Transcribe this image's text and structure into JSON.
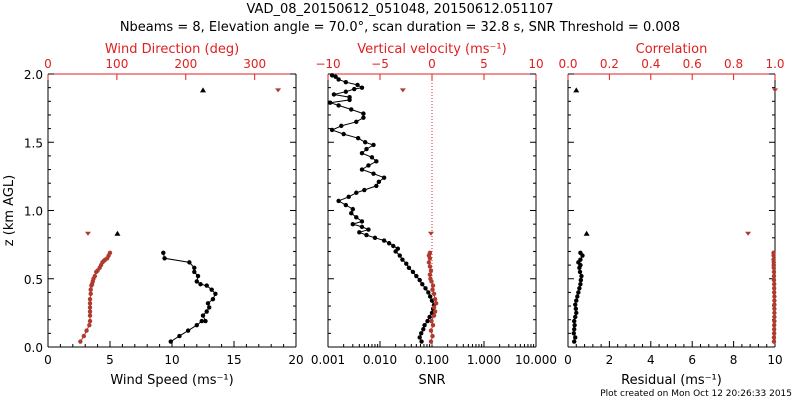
{
  "header": {
    "title": "VAD_08_20150612_051048, 20150612.051107",
    "subtitle": "Nbeams = 8, Elevation angle = 70.0°, scan duration = 32.8 s, SNR Threshold = 0.008"
  },
  "footer": {
    "credit": "Plot created on Mon Oct 12 20:26:33 2015"
  },
  "colors": {
    "black_series": "#000000",
    "red_series": "#b03a2e",
    "red_axis": "#e02020"
  },
  "chart_data": [
    {
      "type": "scatter",
      "name": "wind",
      "ylabel": "z (km AGL)",
      "ylim": [
        0,
        2
      ],
      "yticks": [
        "0.0",
        "0.5",
        "1.0",
        "1.5",
        "2.0"
      ],
      "bottom_axis": {
        "label": "Wind Speed (ms⁻¹)",
        "range": [
          0,
          20
        ],
        "ticks": [
          "0",
          "5",
          "10",
          "15",
          "20"
        ]
      },
      "top_axis": {
        "label": "Wind Direction (deg)",
        "range": [
          0,
          360
        ],
        "ticks": [
          "0",
          "100",
          "200",
          "300"
        ]
      },
      "series": [
        {
          "name": "Wind Speed",
          "axis": "bottom",
          "color": "black",
          "connected": true,
          "x": [
            9.9,
            10.6,
            11.3,
            12.0,
            12.4,
            12.7,
            12.5,
            12.8,
            13.0,
            12.9,
            13.3,
            13.5,
            13.2,
            12.8,
            12.3,
            12.0,
            12.1,
            11.8,
            11.8,
            11.4,
            9.4,
            9.3
          ],
          "y": [
            0.04,
            0.08,
            0.12,
            0.16,
            0.19,
            0.19,
            0.23,
            0.26,
            0.29,
            0.32,
            0.35,
            0.39,
            0.42,
            0.45,
            0.46,
            0.48,
            0.52,
            0.55,
            0.58,
            0.62,
            0.65,
            0.69
          ]
        },
        {
          "name": "Wind Speed (isolated)",
          "axis": "bottom",
          "color": "black",
          "connected": false,
          "x": [
            5.6,
            12.5
          ],
          "y": [
            0.83,
            1.88
          ]
        },
        {
          "name": "Wind Direction",
          "axis": "top",
          "color": "red",
          "connected": true,
          "x": [
            47,
            52,
            56,
            60,
            61,
            61,
            61,
            61,
            61,
            61,
            62,
            62,
            63,
            64,
            65,
            66,
            68,
            70,
            72,
            75,
            77,
            79,
            81,
            83,
            86,
            88,
            90
          ],
          "y": [
            0.04,
            0.08,
            0.12,
            0.16,
            0.19,
            0.23,
            0.26,
            0.29,
            0.32,
            0.35,
            0.39,
            0.42,
            0.45,
            0.46,
            0.48,
            0.5,
            0.52,
            0.55,
            0.56,
            0.58,
            0.6,
            0.62,
            0.63,
            0.64,
            0.65,
            0.67,
            0.69
          ]
        },
        {
          "name": "Wind Direction (isolated)",
          "axis": "top",
          "color": "red",
          "connected": false,
          "x": [
            58,
            334
          ],
          "y": [
            0.83,
            1.88
          ]
        }
      ]
    },
    {
      "type": "scatter",
      "name": "snr",
      "ylim": [
        0,
        2
      ],
      "bottom_axis": {
        "label": "SNR",
        "scale": "log",
        "range": [
          0.001,
          10
        ],
        "ticks": [
          "0.001",
          "0.010",
          "0.100",
          "1.000",
          "10.000"
        ]
      },
      "top_axis": {
        "label": "Vertical velocity (ms⁻¹)",
        "range": [
          -10,
          10
        ],
        "ticks": [
          "−10",
          "−5",
          "0",
          "5",
          "10"
        ]
      },
      "reference_line": {
        "axis": "top",
        "value": 0,
        "style": "dotted",
        "color": "red"
      },
      "series": [
        {
          "name": "SNR",
          "axis": "bottom",
          "color": "black",
          "connected": true,
          "x": [
            0.063,
            0.058,
            0.062,
            0.068,
            0.072,
            0.082,
            0.09,
            0.1,
            0.105,
            0.11,
            0.1,
            0.092,
            0.085,
            0.075,
            0.065,
            0.058,
            0.05,
            0.043,
            0.036,
            0.032,
            0.027,
            0.024,
            0.02,
            0.022,
            0.018,
            0.015,
            0.012,
            0.008,
            0.0055,
            0.004,
            0.006,
            0.0045,
            0.003,
            0.0045,
            0.0035,
            0.0028,
            0.003,
            0.0022,
            0.0016,
            0.0025,
            0.0035,
            0.005,
            0.0085,
            0.0095,
            0.012,
            0.0075,
            0.0045,
            0.006,
            0.0085,
            0.007,
            0.0045,
            0.0055,
            0.0075,
            0.0052,
            0.0038,
            0.002,
            0.0012,
            0.0018,
            0.0035,
            0.0048,
            0.0048,
            0.0028,
            0.0016,
            0.0011,
            0.0026,
            0.0026,
            0.0013,
            0.0022,
            0.0032,
            0.0045,
            0.0037,
            0.0022,
            0.0016,
            0.0014,
            0.0012
          ],
          "y": [
            0.04,
            0.07,
            0.1,
            0.13,
            0.16,
            0.19,
            0.22,
            0.25,
            0.28,
            0.31,
            0.34,
            0.37,
            0.4,
            0.43,
            0.46,
            0.49,
            0.52,
            0.55,
            0.58,
            0.61,
            0.64,
            0.67,
            0.7,
            0.72,
            0.74,
            0.76,
            0.78,
            0.8,
            0.82,
            0.84,
            0.86,
            0.88,
            0.9,
            0.92,
            0.95,
            0.98,
            1.01,
            1.04,
            1.07,
            1.1,
            1.13,
            1.15,
            1.18,
            1.21,
            1.24,
            1.27,
            1.3,
            1.33,
            1.36,
            1.39,
            1.42,
            1.45,
            1.48,
            1.5,
            1.53,
            1.56,
            1.59,
            1.62,
            1.65,
            1.68,
            1.71,
            1.74,
            1.77,
            1.79,
            1.81,
            1.83,
            1.85,
            1.87,
            1.89,
            1.9,
            1.92,
            1.94,
            1.96,
            1.98,
            1.99
          ]
        },
        {
          "name": "Vertical velocity",
          "axis": "top",
          "color": "red",
          "connected": true,
          "x": [
            -0.1,
            0.05,
            -0.1,
            0.1,
            -0.05,
            0.2,
            0.3,
            0.2,
            0.4,
            0.3,
            0.2,
            0.05,
            0.1,
            -0.05,
            -0.15,
            -0.2,
            -0.1,
            -0.2,
            -0.3,
            -0.2,
            -0.3,
            -0.2
          ],
          "y": [
            0.04,
            0.08,
            0.12,
            0.16,
            0.19,
            0.23,
            0.26,
            0.29,
            0.32,
            0.35,
            0.39,
            0.42,
            0.45,
            0.48,
            0.5,
            0.53,
            0.56,
            0.59,
            0.62,
            0.65,
            0.67,
            0.69
          ]
        },
        {
          "name": "Vertical velocity (isolated)",
          "axis": "top",
          "color": "red",
          "connected": false,
          "x": [
            -0.1,
            -2.8
          ],
          "y": [
            0.83,
            1.88
          ]
        }
      ]
    },
    {
      "type": "scatter",
      "name": "fit",
      "ylim": [
        0,
        2
      ],
      "bottom_axis": {
        "label": "Residual (ms⁻¹)",
        "range": [
          0,
          10
        ],
        "ticks": [
          "0",
          "2",
          "4",
          "6",
          "8",
          "10"
        ]
      },
      "top_axis": {
        "label": "Correlation",
        "range": [
          0,
          1
        ],
        "ticks": [
          "0.0",
          "0.2",
          "0.4",
          "0.6",
          "0.8",
          "1.0"
        ]
      },
      "series": [
        {
          "name": "Residual",
          "axis": "bottom",
          "color": "black",
          "connected": true,
          "x": [
            0.3,
            0.35,
            0.28,
            0.3,
            0.32,
            0.3,
            0.35,
            0.4,
            0.38,
            0.35,
            0.4,
            0.45,
            0.5,
            0.55,
            0.6,
            0.62,
            0.65,
            0.58,
            0.55,
            0.6,
            0.5,
            0.6,
            0.7,
            0.6
          ],
          "y": [
            0.04,
            0.07,
            0.1,
            0.13,
            0.16,
            0.19,
            0.22,
            0.25,
            0.28,
            0.31,
            0.34,
            0.37,
            0.4,
            0.43,
            0.46,
            0.49,
            0.52,
            0.55,
            0.58,
            0.6,
            0.62,
            0.64,
            0.67,
            0.69
          ]
        },
        {
          "name": "Residual (isolated)",
          "axis": "bottom",
          "color": "black",
          "connected": false,
          "x": [
            0.9,
            0.4
          ],
          "y": [
            0.83,
            1.88
          ]
        },
        {
          "name": "Correlation",
          "axis": "top",
          "color": "red",
          "connected": true,
          "x": [
            0.995,
            0.995,
            0.996,
            0.996,
            0.996,
            0.997,
            0.997,
            0.997,
            0.997,
            0.997,
            0.997,
            0.997,
            0.996,
            0.996,
            0.996,
            0.995,
            0.995,
            0.995,
            0.994,
            0.994,
            0.994,
            0.993,
            0.993,
            0.993
          ],
          "y": [
            0.04,
            0.07,
            0.1,
            0.13,
            0.16,
            0.19,
            0.22,
            0.25,
            0.28,
            0.31,
            0.34,
            0.37,
            0.4,
            0.43,
            0.46,
            0.49,
            0.52,
            0.55,
            0.58,
            0.6,
            0.62,
            0.64,
            0.67,
            0.69
          ]
        },
        {
          "name": "Correlation (isolated)",
          "axis": "top",
          "color": "red",
          "connected": false,
          "x": [
            0.87,
            1.0
          ],
          "y": [
            0.83,
            1.88
          ]
        }
      ]
    }
  ]
}
